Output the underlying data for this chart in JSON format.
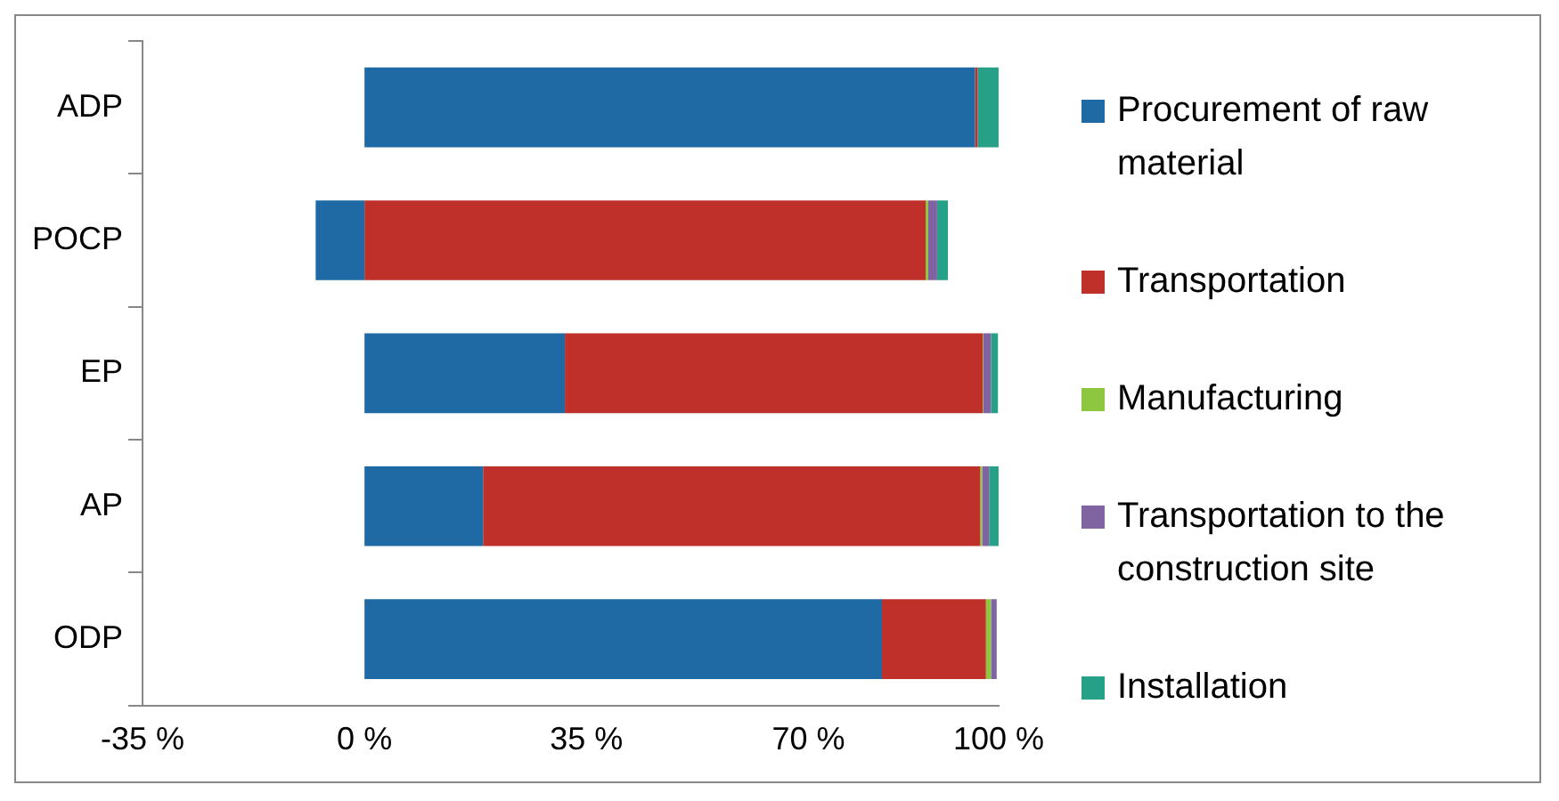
{
  "chart_data": {
    "type": "bar",
    "orientation": "horizontal",
    "stacked": true,
    "categories": [
      "ADP",
      "POCP",
      "EP",
      "AP",
      "ODP"
    ],
    "series": [
      {
        "name": "Procurement of raw material",
        "color": "#1f6aa5",
        "values": [
          96.3,
          -7.7,
          31.6,
          18.7,
          81.6
        ]
      },
      {
        "name": "Transportation",
        "color": "#c0302a",
        "values": [
          0.4,
          88.5,
          65.9,
          78.4,
          16.4
        ]
      },
      {
        "name": "Manufacturing",
        "color": "#8dc63f",
        "values": [
          0,
          0.4,
          0.1,
          0.3,
          0.8
        ]
      },
      {
        "name": "Transportation to the construction site",
        "color": "#8064a2",
        "values": [
          0,
          1.4,
          1.2,
          1.1,
          0.9
        ]
      },
      {
        "name": "Installation",
        "color": "#27a088",
        "values": [
          3.3,
          1.7,
          1.1,
          1.5,
          null
        ]
      }
    ],
    "xlim": [
      -35,
      100
    ],
    "xticks": [
      {
        "value": -35,
        "label": "-35 %"
      },
      {
        "value": 0,
        "label": "0 %"
      },
      {
        "value": 35,
        "label": "35 %"
      },
      {
        "value": 70,
        "label": "70 %"
      },
      {
        "value": 100,
        "label": "100 %"
      }
    ],
    "grid": false,
    "legend": "right"
  }
}
